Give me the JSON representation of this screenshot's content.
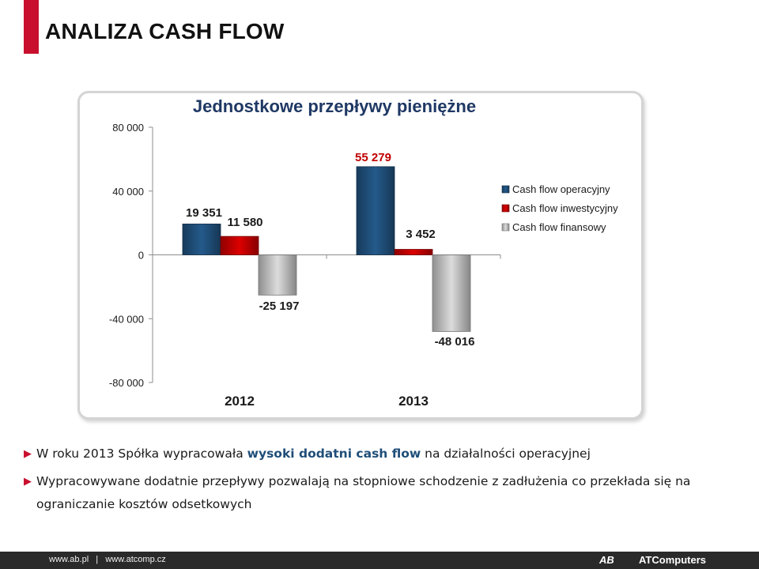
{
  "page": {
    "title": "ANALIZA CASH FLOW"
  },
  "chart_data": {
    "type": "bar",
    "title": "Jednostkowe przepływy pieniężne",
    "categories": [
      "2012",
      "2013"
    ],
    "series": [
      {
        "name": "Cash flow operacyjny",
        "values": [
          19351,
          55279
        ],
        "labels": [
          "19 351",
          "55 279"
        ],
        "color": "#1f4e79"
      },
      {
        "name": "Cash flow inwestycyjny",
        "values": [
          11580,
          3452
        ],
        "labels": [
          "11 580",
          "3 452"
        ],
        "color": "#c00000"
      },
      {
        "name": "Cash flow finansowy",
        "values": [
          -25197,
          -48016
        ],
        "labels": [
          "-25 197",
          "-48 016"
        ],
        "color": "#bfbfbf"
      }
    ],
    "ylim": [
      -80000,
      80000
    ],
    "yticks": [
      80000,
      40000,
      0,
      -40000,
      -80000
    ],
    "ytick_labels": [
      "80 000",
      "40 000",
      "0",
      "-40 000",
      "-80 000"
    ],
    "legend_position": "right",
    "grid": false
  },
  "bullets": [
    {
      "pre": "W roku 2013 Spółka wypracowała ",
      "highlight": "wysoki dodatni cash flow",
      "post": " na działalności operacyjnej"
    },
    {
      "pre": "Wypracowywane dodatnie przepływy pozwalają na stopniowe schodzenie z zadłużenia co przekłada się na ograniczanie kosztów odsetkowych",
      "highlight": "",
      "post": ""
    }
  ],
  "footer": {
    "links": "www.ab.pl   |   www.atcomp.cz",
    "logo_ab": "AB",
    "logo_atc": "ATComputers"
  },
  "colors": {
    "accent": "#c8102e",
    "highlight_text": "#1f4e79"
  }
}
